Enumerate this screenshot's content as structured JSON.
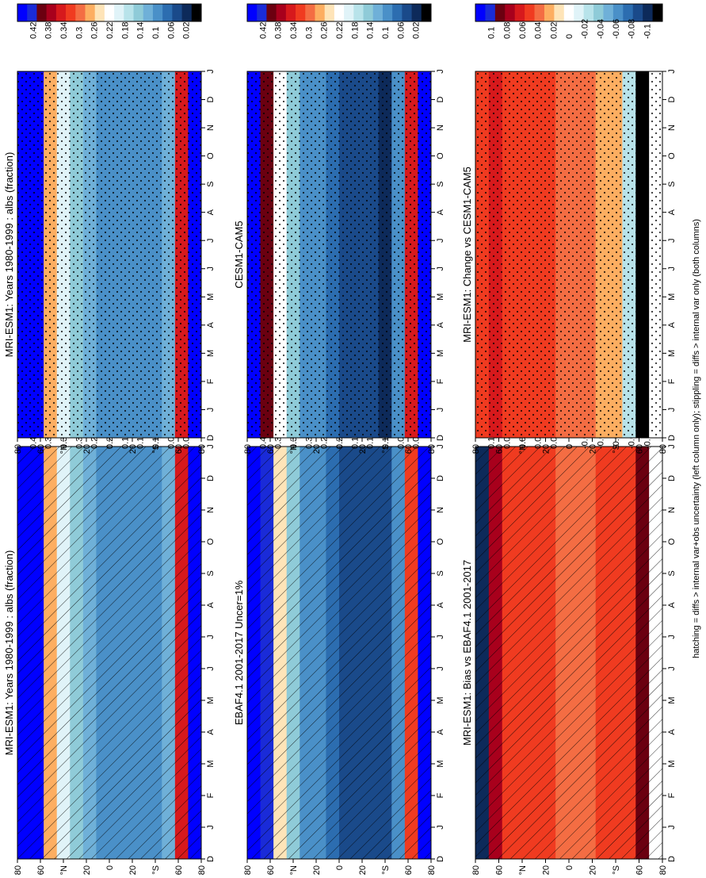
{
  "figure": {
    "footnote": "hatching = diffs > internal var+obs uncertainty (left column only); stippling = diffs > internal var only (both columns)"
  },
  "colorbars": {
    "abs": {
      "labels": [
        "0.42",
        "0.38",
        "0.34",
        "0.3",
        "0.26",
        "0.22",
        "0.18",
        "0.14",
        "0.1",
        "0.06",
        "0.02"
      ],
      "colors": [
        "#0000ff",
        "#1a2bd8",
        "#6b0010",
        "#a8001c",
        "#d7191c",
        "#f03b20",
        "#f46d43",
        "#fdae61",
        "#fee4b8",
        "#ffffff",
        "#e0f3f8",
        "#b8e3ea",
        "#8fcbd8",
        "#6fb0d8",
        "#4a90c8",
        "#2c6db0",
        "#1a4a8a",
        "#0d2a5a",
        "#000000"
      ]
    },
    "diff": {
      "labels": [
        "0.1",
        "0.08",
        "0.06",
        "0.04",
        "0.02",
        "0",
        "-0.02",
        "-0.04",
        "-0.06",
        "-0.08",
        "-0.1"
      ],
      "colors": [
        "#0000ff",
        "#1a2bd8",
        "#6b0010",
        "#a8001c",
        "#d7191c",
        "#f03b20",
        "#f46d43",
        "#fdae61",
        "#fee4b8",
        "#ffffff",
        "#e0f3f8",
        "#b8e3ea",
        "#8fcbd8",
        "#6fb0d8",
        "#4a90c8",
        "#2c6db0",
        "#1a4a8a",
        "#0d2a5a",
        "#000000"
      ]
    }
  },
  "chart_data": [
    {
      "type": "heatmap",
      "id": "p1",
      "title": "MRI-ESM1: Years 1980-1999 : albs (fraction)",
      "xlabel": "",
      "ylabel": "",
      "x_ticks": [
        "D",
        "J",
        "F",
        "M",
        "A",
        "M",
        "J",
        "J",
        "A",
        "S",
        "O",
        "N",
        "D",
        "J"
      ],
      "y_ticks": [
        "80",
        "60",
        "°N",
        "20",
        "0",
        "20",
        "°S",
        "60",
        "80"
      ],
      "ylim": [
        -90,
        90
      ],
      "overlay": "hatching",
      "colorbar": "abs",
      "zonal_profile": [
        0.45,
        0.42,
        0.26,
        0.19,
        0.15,
        0.13,
        0.11,
        0.1,
        0.1,
        0.1,
        0.1,
        0.14,
        0.34,
        0.42
      ]
    },
    {
      "type": "heatmap",
      "id": "p2",
      "title": "MRI-ESM1: Years 1980-1999 : albs (fraction)",
      "xlabel": "",
      "ylabel": "",
      "x_ticks": [
        "D",
        "J",
        "F",
        "M",
        "A",
        "M",
        "J",
        "J",
        "A",
        "S",
        "O",
        "N",
        "D",
        "J"
      ],
      "y_ticks": [
        "80",
        "60",
        "°N",
        "20",
        "0",
        "20",
        "°S",
        "60",
        "80"
      ],
      "ylim": [
        -90,
        90
      ],
      "overlay": "stippling",
      "colorbar": "abs",
      "zonal_profile": [
        0.45,
        0.42,
        0.26,
        0.19,
        0.15,
        0.13,
        0.11,
        0.1,
        0.1,
        0.1,
        0.1,
        0.14,
        0.34,
        0.42
      ]
    },
    {
      "type": "heatmap",
      "id": "p3",
      "title": "EBAF4.1 2001-2017 Uncer=1%",
      "xlabel": "",
      "ylabel": "",
      "x_ticks": [
        "D",
        "J",
        "F",
        "M",
        "A",
        "M",
        "J",
        "J",
        "A",
        "S",
        "O",
        "N",
        "D",
        "J"
      ],
      "y_ticks": [
        "80",
        "60",
        "°N",
        "20",
        "0",
        "20",
        "°S",
        "60",
        "80"
      ],
      "ylim": [
        -90,
        90
      ],
      "overlay": "hatching",
      "colorbar": "abs",
      "zonal_profile": [
        0.45,
        0.4,
        0.24,
        0.16,
        0.12,
        0.1,
        0.08,
        0.06,
        0.06,
        0.06,
        0.06,
        0.1,
        0.3,
        0.42
      ]
    },
    {
      "type": "heatmap",
      "id": "p4",
      "title": "CESM1-CAM5",
      "xlabel": "",
      "ylabel": "",
      "x_ticks": [
        "D",
        "J",
        "F",
        "M",
        "A",
        "M",
        "J",
        "J",
        "A",
        "S",
        "O",
        "N",
        "D",
        "J"
      ],
      "y_ticks": [
        "80",
        "60",
        "°N",
        "20",
        "0",
        "20",
        "°S",
        "60",
        "80"
      ],
      "ylim": [
        -90,
        90
      ],
      "overlay": "stippling",
      "colorbar": "abs",
      "zonal_profile": [
        0.45,
        0.38,
        0.22,
        0.15,
        0.12,
        0.1,
        0.08,
        0.07,
        0.06,
        0.06,
        0.05,
        0.1,
        0.32,
        0.42
      ]
    },
    {
      "type": "heatmap",
      "id": "p5",
      "title": "MRI-ESM1: Bias vs EBAF4.1 2001-2017",
      "xlabel": "",
      "ylabel": "",
      "x_ticks": [
        "D",
        "J",
        "F",
        "M",
        "A",
        "M",
        "J",
        "J",
        "A",
        "S",
        "O",
        "N",
        "D",
        "J"
      ],
      "y_ticks": [
        "80",
        "60",
        "°N",
        "20",
        "0",
        "20",
        "°S",
        "60",
        "80"
      ],
      "ylim": [
        -90,
        90
      ],
      "overlay": "hatching",
      "colorbar": "diff",
      "zonal_profile": [
        -0.09,
        0.07,
        0.05,
        0.04,
        0.04,
        0.04,
        0.03,
        0.03,
        0.03,
        0.04,
        0.04,
        0.05,
        0.08,
        0.0
      ]
    },
    {
      "type": "heatmap",
      "id": "p6",
      "title": "MRI-ESM1: Change vs CESM1-CAM5",
      "xlabel": "",
      "ylabel": "",
      "x_ticks": [
        "D",
        "J",
        "F",
        "M",
        "A",
        "M",
        "J",
        "J",
        "A",
        "S",
        "O",
        "N",
        "D",
        "J"
      ],
      "y_ticks": [
        "80",
        "60",
        "°N",
        "20",
        "0",
        "20",
        "°S",
        "60",
        "80"
      ],
      "ylim": [
        -90,
        90
      ],
      "overlay": "stippling",
      "colorbar": "diff",
      "zonal_profile": [
        0.04,
        0.06,
        0.05,
        0.04,
        0.04,
        0.04,
        0.03,
        0.03,
        0.03,
        0.02,
        0.02,
        -0.02,
        -0.11,
        0.0
      ]
    }
  ]
}
